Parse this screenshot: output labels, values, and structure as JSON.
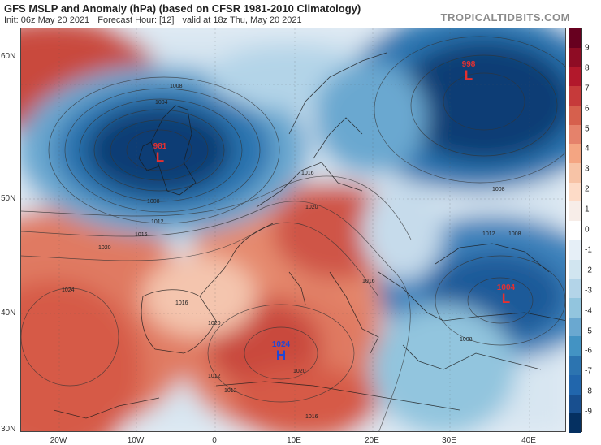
{
  "header": {
    "title": "GFS MSLP and Anomaly (hPa) (based on CFSR 1981-2010 Climatology)",
    "init": "Init: 06z May 20 2021",
    "forecast_hour": "Forecast Hour: [12]",
    "valid": "valid at 18z Thu, May 20 2021",
    "brand": "TROPICALTIDBITS.COM"
  },
  "axes": {
    "lat_labels": [
      "60N",
      "50N",
      "40N",
      "30N"
    ],
    "lon_labels": [
      "20W",
      "10W",
      "0",
      "10E",
      "20E",
      "30E",
      "40E"
    ]
  },
  "colorbar": {
    "ticks": [
      "9",
      "8",
      "7",
      "6",
      "5",
      "4",
      "3",
      "2",
      "1",
      "0",
      "-1",
      "-2",
      "-3",
      "-4",
      "-5",
      "-6",
      "-7",
      "-8",
      "-9"
    ],
    "colors": [
      "#67001f",
      "#8e0c24",
      "#b2182b",
      "#c63a3a",
      "#d6604d",
      "#e5826b",
      "#f4a582",
      "#f7c3a6",
      "#fddbc7",
      "#f7ede8",
      "#ffffff",
      "#e6eff7",
      "#d1e5f0",
      "#b3d4e8",
      "#92c5de",
      "#6aa8d0",
      "#4393c3",
      "#2c74b0",
      "#2166ac",
      "#184f8f",
      "#053061"
    ]
  },
  "systems": [
    {
      "id": "low-uk",
      "type": "L",
      "value": "981",
      "color": "#e53030"
    },
    {
      "id": "low-russia",
      "type": "L",
      "value": "998",
      "color": "#e53030"
    },
    {
      "id": "low-turkey",
      "type": "L",
      "value": "1004",
      "color": "#e53030"
    },
    {
      "id": "high-med",
      "type": "H",
      "value": "1024",
      "color": "#1f47d6"
    }
  ],
  "isobar_labels": [
    "1008",
    "1004",
    "1008",
    "1012",
    "1016",
    "1020",
    "1024",
    "1020",
    "1016",
    "1020",
    "1016",
    "1012",
    "1008",
    "1012",
    "1016",
    "1008",
    "1012",
    "1008",
    "1016",
    "1020",
    "1016"
  ]
}
